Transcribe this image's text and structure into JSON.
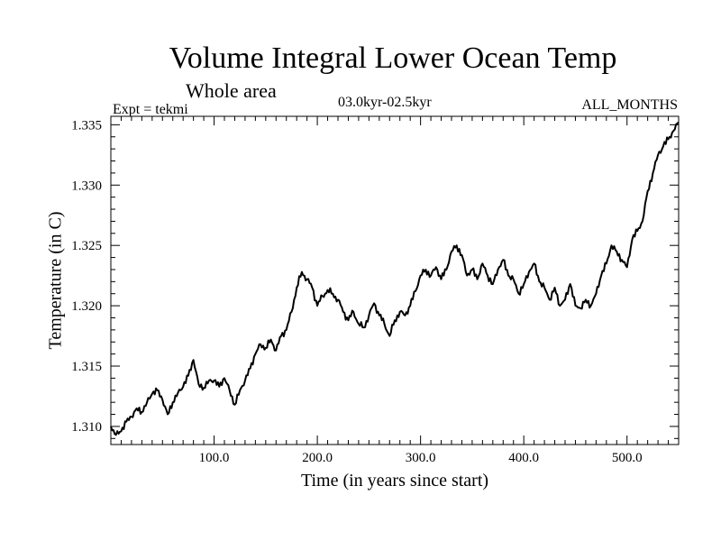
{
  "chart_data": {
    "type": "line",
    "title": "Volume Integral Lower Ocean Temp",
    "subtitle": "Whole area",
    "annotations": {
      "left": "Expt = tekmi",
      "center": "03.0kyr-02.5kyr",
      "right": "ALL_MONTHS"
    },
    "xlabel": "Time (in years since start)",
    "ylabel": "Temperature (in C)",
    "xlim": [
      0,
      550
    ],
    "ylim": [
      1.3085,
      1.3357
    ],
    "x_ticks": [
      100,
      200,
      300,
      400,
      500
    ],
    "x_tick_labels": [
      "100.0",
      "200.0",
      "300.0",
      "400.0",
      "500.0"
    ],
    "y_ticks": [
      1.31,
      1.315,
      1.32,
      1.325,
      1.33,
      1.335
    ],
    "y_tick_labels": [
      "1.310",
      "1.315",
      "1.320",
      "1.325",
      "1.330",
      "1.335"
    ],
    "grid": false,
    "series": [
      {
        "name": "Volume Integral Lower Ocean Temp",
        "x": [
          0,
          5,
          10,
          15,
          20,
          25,
          30,
          35,
          40,
          45,
          50,
          55,
          60,
          65,
          70,
          75,
          80,
          85,
          90,
          95,
          100,
          105,
          110,
          115,
          120,
          125,
          130,
          135,
          140,
          145,
          150,
          155,
          160,
          165,
          170,
          175,
          180,
          185,
          190,
          195,
          200,
          205,
          210,
          215,
          220,
          225,
          230,
          235,
          240,
          245,
          250,
          255,
          260,
          265,
          270,
          275,
          280,
          285,
          290,
          295,
          300,
          305,
          310,
          315,
          320,
          325,
          330,
          335,
          340,
          345,
          350,
          355,
          360,
          365,
          370,
          375,
          380,
          385,
          390,
          395,
          400,
          405,
          410,
          415,
          420,
          425,
          430,
          435,
          440,
          445,
          450,
          455,
          460,
          465,
          470,
          475,
          480,
          485,
          490,
          495,
          500,
          505,
          510,
          515,
          520,
          525,
          530,
          535,
          540,
          545,
          550
        ],
        "values": [
          1.31,
          1.3093,
          1.3096,
          1.3104,
          1.3108,
          1.3115,
          1.3112,
          1.312,
          1.3127,
          1.313,
          1.3122,
          1.311,
          1.312,
          1.3128,
          1.3133,
          1.3142,
          1.3155,
          1.3135,
          1.3132,
          1.3138,
          1.3138,
          1.3133,
          1.314,
          1.313,
          1.3118,
          1.313,
          1.3138,
          1.3148,
          1.316,
          1.3168,
          1.3165,
          1.3172,
          1.3163,
          1.3175,
          1.318,
          1.3195,
          1.3215,
          1.3228,
          1.3222,
          1.3215,
          1.32,
          1.3208,
          1.3213,
          1.321,
          1.3205,
          1.3195,
          1.3188,
          1.3195,
          1.3185,
          1.3182,
          1.3192,
          1.3202,
          1.3192,
          1.3185,
          1.3175,
          1.3188,
          1.3195,
          1.3192,
          1.32,
          1.3212,
          1.3225,
          1.323,
          1.3225,
          1.3232,
          1.3222,
          1.323,
          1.3245,
          1.325,
          1.3242,
          1.3225,
          1.323,
          1.3222,
          1.3235,
          1.3225,
          1.3218,
          1.323,
          1.3238,
          1.3225,
          1.3222,
          1.321,
          1.3218,
          1.3228,
          1.3235,
          1.322,
          1.3215,
          1.3205,
          1.3215,
          1.32,
          1.3205,
          1.3218,
          1.32,
          1.3198,
          1.3205,
          1.32,
          1.321,
          1.3225,
          1.3235,
          1.325,
          1.3245,
          1.3238,
          1.3232,
          1.3255,
          1.3262,
          1.327,
          1.3295,
          1.331,
          1.3325,
          1.3332,
          1.3338,
          1.3345,
          1.3352
        ]
      }
    ]
  }
}
